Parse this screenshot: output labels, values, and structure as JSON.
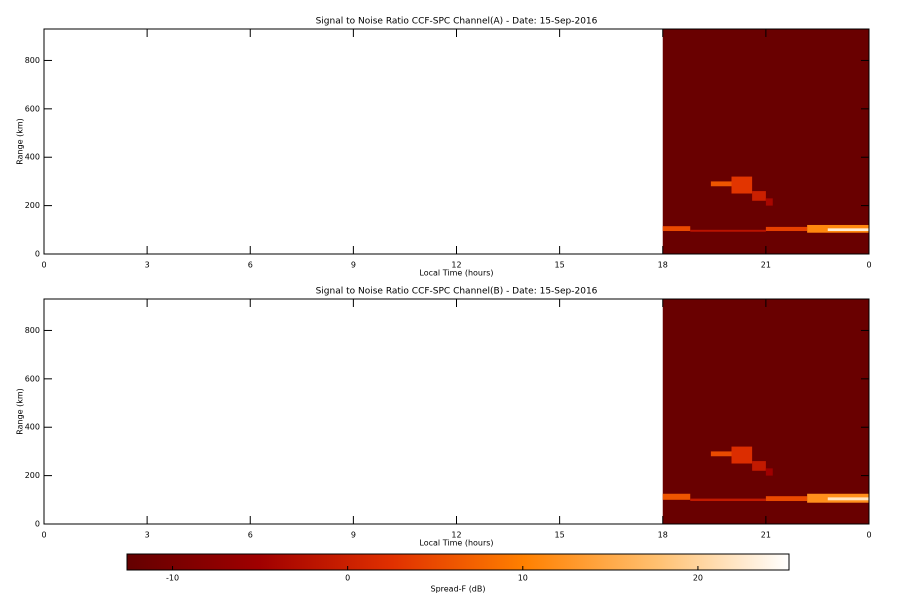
{
  "chart_data": [
    {
      "type": "heatmap",
      "title": "Signal to Noise Ratio CCF-SPC Channel(A) - Date: 15-Sep-2016",
      "xlabel": "Local Time (hours)",
      "ylabel": "Range (km)",
      "xlim": [
        0,
        24
      ],
      "xticks": [
        0,
        3,
        6,
        9,
        12,
        15,
        18,
        21,
        {
          "value": 24,
          "label": "0"
        }
      ],
      "ylim": [
        0,
        930
      ],
      "yticks": [
        0,
        200,
        400,
        600,
        800
      ],
      "patches": [
        {
          "x": [
            18,
            24
          ],
          "y": [
            0,
            930
          ],
          "value": -12
        },
        {
          "x": [
            18.0,
            18.8
          ],
          "y": [
            95,
            115
          ],
          "value": 5
        },
        {
          "x": [
            18.8,
            21.0
          ],
          "y": [
            92,
            100
          ],
          "value": -2
        },
        {
          "x": [
            21.0,
            22.2
          ],
          "y": [
            95,
            112
          ],
          "value": 4
        },
        {
          "x": [
            22.2,
            24.0
          ],
          "y": [
            88,
            120
          ],
          "value": 11
        },
        {
          "x": [
            22.8,
            24.0
          ],
          "y": [
            95,
            106
          ],
          "value": 23
        },
        {
          "x": [
            19.4,
            20.0
          ],
          "y": [
            280,
            300
          ],
          "value": 6
        },
        {
          "x": [
            20.0,
            20.6
          ],
          "y": [
            250,
            320
          ],
          "value": 3
        },
        {
          "x": [
            20.6,
            21.0
          ],
          "y": [
            220,
            260
          ],
          "value": 0
        },
        {
          "x": [
            21.0,
            21.2
          ],
          "y": [
            200,
            230
          ],
          "value": -4
        }
      ]
    },
    {
      "type": "heatmap",
      "title": "Signal to Noise Ratio CCF-SPC Channel(B) - Date: 15-Sep-2016",
      "xlabel": "Local Time (hours)",
      "ylabel": "Range (km)",
      "xlim": [
        0,
        24
      ],
      "xticks": [
        0,
        3,
        6,
        9,
        12,
        15,
        18,
        21,
        {
          "value": 24,
          "label": "0"
        }
      ],
      "ylim": [
        0,
        930
      ],
      "yticks": [
        0,
        200,
        400,
        600,
        800
      ],
      "patches": [
        {
          "x": [
            18,
            24
          ],
          "y": [
            0,
            930
          ],
          "value": -12
        },
        {
          "x": [
            18.0,
            18.8
          ],
          "y": [
            100,
            125
          ],
          "value": 6
        },
        {
          "x": [
            18.8,
            21.0
          ],
          "y": [
            95,
            105
          ],
          "value": -1
        },
        {
          "x": [
            21.0,
            22.2
          ],
          "y": [
            95,
            115
          ],
          "value": 5
        },
        {
          "x": [
            22.2,
            24.0
          ],
          "y": [
            88,
            125
          ],
          "value": 12
        },
        {
          "x": [
            22.8,
            24.0
          ],
          "y": [
            98,
            110
          ],
          "value": 22
        },
        {
          "x": [
            19.4,
            20.0
          ],
          "y": [
            280,
            300
          ],
          "value": 5
        },
        {
          "x": [
            20.0,
            20.6
          ],
          "y": [
            250,
            320
          ],
          "value": 2
        },
        {
          "x": [
            20.6,
            21.0
          ],
          "y": [
            220,
            260
          ],
          "value": -1
        },
        {
          "x": [
            21.0,
            21.2
          ],
          "y": [
            200,
            230
          ],
          "value": -5
        }
      ]
    },
    {
      "type": "colorbar",
      "xlabel": "Spread-F (dB)",
      "xlim": [
        -12.6,
        25.2
      ],
      "xticks": [
        -10,
        0,
        10,
        20
      ],
      "colormap": [
        "#640000",
        "#a00000",
        "#e03000",
        "#ff8000",
        "#ffc070",
        "#ffffff"
      ]
    }
  ]
}
